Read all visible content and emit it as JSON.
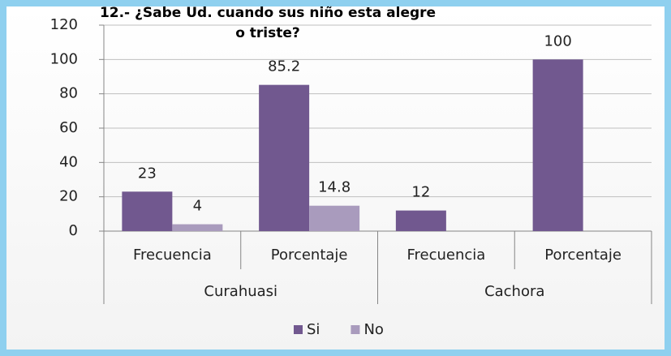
{
  "chart_data": {
    "type": "bar",
    "title": "12.- ¿Sabe Ud. cuando sus niño esta alegre o triste?",
    "categories": [
      "Frecuencia",
      "Porcentaje",
      "Frecuencia",
      "Porcentaje"
    ],
    "groups": [
      {
        "name": "Curahuasi",
        "span": 2
      },
      {
        "name": "Cachora",
        "span": 2
      }
    ],
    "series": [
      {
        "name": "Si",
        "color": "#71588f",
        "values": [
          23,
          85.2,
          12,
          100
        ]
      },
      {
        "name": "No",
        "color": "#a99bbd",
        "values": [
          4,
          14.8,
          null,
          null
        ]
      }
    ],
    "ylim": [
      0,
      120
    ],
    "yticks": [
      0,
      20,
      40,
      60,
      80,
      100,
      120
    ],
    "grid": true,
    "legend": "bottom"
  }
}
